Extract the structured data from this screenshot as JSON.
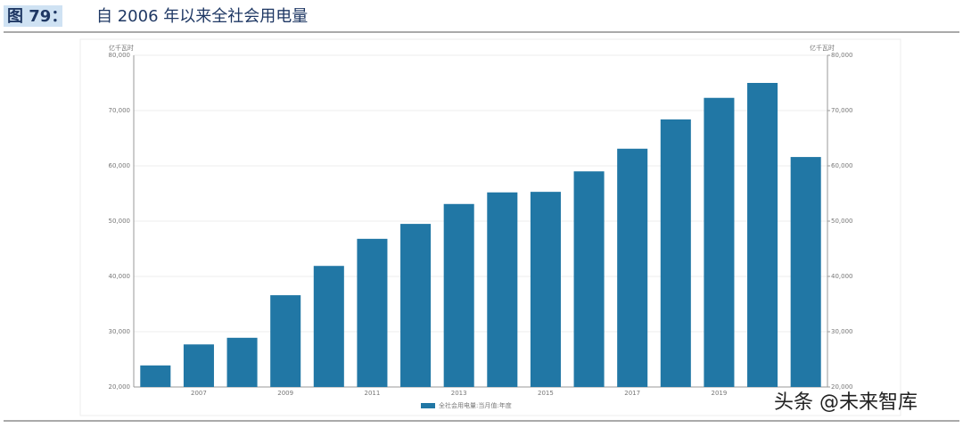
{
  "header": {
    "figure": "图 79：",
    "title": "自 2006 年以来全社会用电量"
  },
  "watermark": "头条 @未来智库",
  "chart_data": {
    "type": "bar",
    "y_label": "亿千瓦时",
    "y2_label": "亿千瓦时",
    "categories": [
      null,
      "2007",
      null,
      "2009",
      null,
      "2011",
      null,
      "2013",
      null,
      "2015",
      null,
      "2017",
      null,
      "2019",
      null,
      null
    ],
    "series": [
      {
        "name": "全社会用电量:当月值:年度",
        "color": "#2177a5",
        "values": [
          23900,
          27700,
          28900,
          36600,
          41900,
          46800,
          49500,
          53100,
          55200,
          55300,
          59000,
          63100,
          68400,
          72300,
          75000,
          61600
        ]
      }
    ],
    "ylim": [
      20000,
      80000
    ],
    "yticks": [
      {
        "value": 20000,
        "label": "20,000"
      },
      {
        "value": 30000,
        "label": "30,000"
      },
      {
        "value": 40000,
        "label": "40,000"
      },
      {
        "value": 50000,
        "label": "50,000"
      },
      {
        "value": 60000,
        "label": "60,000"
      },
      {
        "value": 70000,
        "label": "70,000"
      },
      {
        "value": 80000,
        "label": "80,000"
      }
    ],
    "y2lim": [
      20000,
      80000
    ],
    "y2ticks": [
      {
        "value": 20000,
        "label": "20,000"
      },
      {
        "value": 30000,
        "label": "30,000"
      },
      {
        "value": 40000,
        "label": "40,000"
      },
      {
        "value": 50000,
        "label": "50,000"
      },
      {
        "value": 60000,
        "label": "60,000"
      },
      {
        "value": 70000,
        "label": "70,000"
      },
      {
        "value": 80000,
        "label": "80,000"
      }
    ],
    "grid": true
  }
}
